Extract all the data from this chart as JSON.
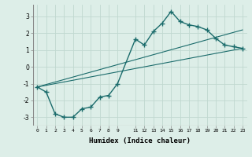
{
  "xlabel": "Humidex (Indice chaleur)",
  "bg_color": "#ddeee8",
  "grid_color": "#c0d8d0",
  "line_color": "#1a6b6b",
  "xlim": [
    -0.5,
    23.5
  ],
  "ylim": [
    -3.5,
    3.7
  ],
  "xticks": [
    0,
    1,
    2,
    3,
    4,
    5,
    6,
    7,
    8,
    9,
    11,
    12,
    13,
    14,
    15,
    16,
    17,
    18,
    19,
    20,
    21,
    22,
    23
  ],
  "yticks": [
    -3,
    -2,
    -1,
    0,
    1,
    2,
    3
  ],
  "series": [
    {
      "x": [
        0,
        1,
        2,
        3,
        4,
        5,
        6,
        7,
        8,
        9,
        11,
        12,
        13,
        14,
        15,
        16,
        17,
        18,
        19,
        20,
        21,
        22,
        23
      ],
      "y": [
        -1.2,
        -1.5,
        -2.8,
        -3.0,
        -3.0,
        -2.5,
        -2.4,
        -1.8,
        -1.7,
        -1.0,
        1.65,
        1.3,
        2.1,
        2.6,
        3.3,
        2.7,
        2.5,
        2.4,
        2.2,
        1.7,
        1.3,
        1.2,
        1.1
      ],
      "marker": "+",
      "markersize": 4,
      "linewidth": 1.0
    },
    {
      "x": [
        0,
        23
      ],
      "y": [
        -1.2,
        2.2
      ],
      "marker": null,
      "linewidth": 0.8
    },
    {
      "x": [
        0,
        23
      ],
      "y": [
        -1.2,
        1.1
      ],
      "marker": null,
      "linewidth": 0.8
    }
  ]
}
